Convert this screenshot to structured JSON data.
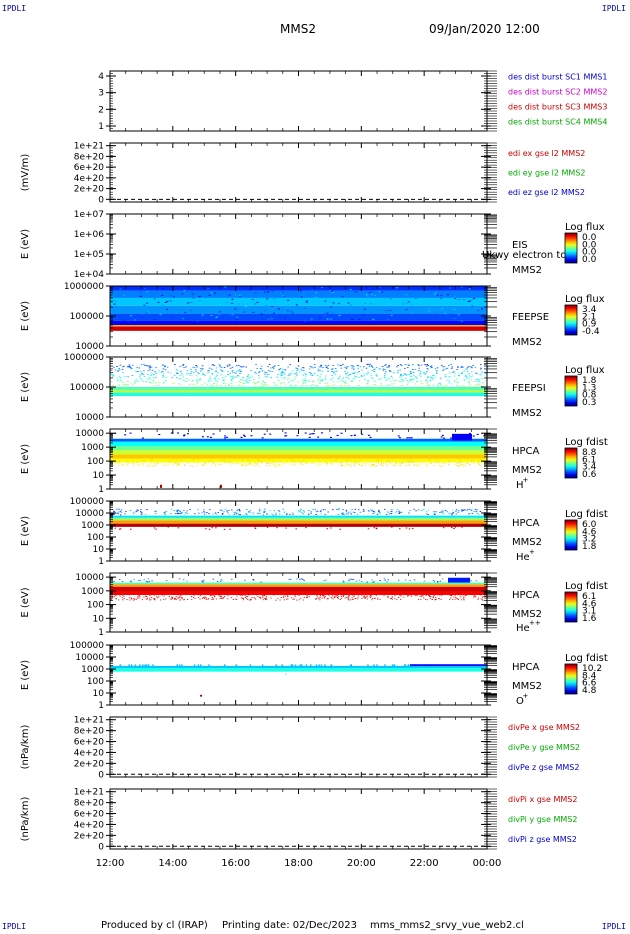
{
  "header": {
    "corner_mark": "IPDLI",
    "spacecraft": "MMS2",
    "datetime": "09/Jan/2020 12:00"
  },
  "footer": {
    "produced_by": "Produced by cl (IRAP)",
    "printing_date": "Printing date: 02/Dec/2023",
    "script": "mms_mms2_srvy_vue_web2.cl"
  },
  "chart_data": [
    {
      "type": "line",
      "panel": "des-dist-burst",
      "ylabel": "",
      "ytick_labels": [
        "1",
        "2",
        "3",
        "4"
      ],
      "ylim": [
        0.7,
        4.3
      ],
      "legend": [
        {
          "label": "des dist burst SC1 MMS1",
          "color": "#0000cc"
        },
        {
          "label": "des dist burst SC2 MMS2",
          "color": "#cc00cc"
        },
        {
          "label": "des dist burst SC3 MMS3",
          "color": "#cc0000"
        },
        {
          "label": "des dist burst SC4 MMS4",
          "color": "#00aa00"
        }
      ],
      "series": []
    },
    {
      "type": "line",
      "panel": "edi-e-field",
      "ylabel": "(mV/m)",
      "ytick_labels": [
        "0",
        "2e+20",
        "4e+20",
        "6e+20",
        "8e+20",
        "1e+21"
      ],
      "ylim": [
        -5e+19,
        1.05e+21
      ],
      "legend": [
        {
          "label": "edi ex gse l2 MMS2",
          "color": "#cc0000"
        },
        {
          "label": "edi ey gse l2 MMS2",
          "color": "#00aa00"
        },
        {
          "label": "edi ez gse l2 MMS2",
          "color": "#0000cc"
        }
      ],
      "zero_line": true,
      "series": []
    },
    {
      "type": "heatmap",
      "panel": "eis",
      "ylabel": "E (eV)",
      "ytick_labels": [
        "1e+04",
        "1e+05",
        "1e+06",
        "1e+07"
      ],
      "yscale": "log",
      "ylim": [
        10000.0,
        10000000.0
      ],
      "instrument": [
        "EIS",
        "MMS2"
      ],
      "overlay_text": "Ukwy electron to",
      "colorbar": {
        "title": "Log flux",
        "ticks": [
          "0.0",
          "0.0",
          "0.0",
          "0.0"
        ]
      },
      "fill": "empty"
    },
    {
      "type": "heatmap",
      "panel": "feeps-electron",
      "ylabel": "E (eV)",
      "ytick_labels": [
        "10000",
        "100000",
        "1000000"
      ],
      "yscale": "log",
      "ylim": [
        10000.0,
        1000000.0
      ],
      "instrument": [
        "FEEPSE",
        "MMS2"
      ],
      "colorbar": {
        "title": "Log flux",
        "ticks": [
          "3.4",
          "2.1",
          "0.9",
          "-0.4"
        ]
      },
      "fill": "feepse"
    },
    {
      "type": "heatmap",
      "panel": "feeps-ion",
      "ylabel": "E (eV)",
      "ytick_labels": [
        "10000",
        "100000",
        "1000000"
      ],
      "yscale": "log",
      "ylim": [
        10000.0,
        1000000.0
      ],
      "instrument": [
        "FEEPSI",
        "MMS2"
      ],
      "colorbar": {
        "title": "Log flux",
        "ticks": [
          "1.8",
          "1.3",
          "0.8",
          "0.3"
        ]
      },
      "fill": "feepsi"
    },
    {
      "type": "heatmap",
      "panel": "hpca-h",
      "ylabel": "E (eV)",
      "ytick_labels": [
        "1",
        "10",
        "100",
        "1000",
        "10000"
      ],
      "yscale": "log",
      "ylim": [
        1,
        20000
      ],
      "instrument": [
        "HPCA",
        "MMS2"
      ],
      "species": "H",
      "species_sup": "+",
      "colorbar": {
        "title": "Log fdist",
        "ticks": [
          "8.8",
          "6.1",
          "3.4",
          "0.6"
        ]
      },
      "fill": "hpca-h"
    },
    {
      "type": "heatmap",
      "panel": "hpca-he",
      "ylabel": "E (eV)",
      "ytick_labels": [
        "1",
        "10",
        "100",
        "1000",
        "10000",
        "100000"
      ],
      "yscale": "log",
      "ylim": [
        1,
        100000
      ],
      "instrument": [
        "HPCA",
        "MMS2"
      ],
      "species": "He",
      "species_sup": "+",
      "colorbar": {
        "title": "Log fdist",
        "ticks": [
          "6.0",
          "4.6",
          "3.2",
          "1.8"
        ]
      },
      "fill": "hpca-he"
    },
    {
      "type": "heatmap",
      "panel": "hpca-hepp",
      "ylabel": "E (eV)",
      "ytick_labels": [
        "1",
        "10",
        "100",
        "1000",
        "10000"
      ],
      "yscale": "log",
      "ylim": [
        1,
        20000
      ],
      "instrument": [
        "HPCA",
        "MMS2"
      ],
      "species": "He",
      "species_sup": "++",
      "colorbar": {
        "title": "Log fdist",
        "ticks": [
          "6.1",
          "4.6",
          "3.1",
          "1.6"
        ]
      },
      "fill": "hpca-hepp"
    },
    {
      "type": "heatmap",
      "panel": "hpca-o",
      "ylabel": "E (eV)",
      "ytick_labels": [
        "1",
        "10",
        "100",
        "1000",
        "10000",
        "100000"
      ],
      "yscale": "log",
      "ylim": [
        1,
        100000
      ],
      "instrument": [
        "HPCA",
        "MMS2"
      ],
      "species": "O",
      "species_sup": "+",
      "colorbar": {
        "title": "Log fdist",
        "ticks": [
          "10.2",
          "8.4",
          "6.6",
          "4.8"
        ]
      },
      "fill": "hpca-o"
    },
    {
      "type": "line",
      "panel": "divpe",
      "ylabel": "(nPa/km)",
      "ytick_labels": [
        "0",
        "2e+20",
        "4e+20",
        "6e+20",
        "8e+20",
        "1e+21"
      ],
      "ylim": [
        -5e+19,
        1.05e+21
      ],
      "legend": [
        {
          "label": "divPe x gse MMS2",
          "color": "#cc0000"
        },
        {
          "label": "divPe y gse MMS2",
          "color": "#00aa00"
        },
        {
          "label": "divPe z gse MMS2",
          "color": "#0000cc"
        }
      ],
      "zero_line": true,
      "series": []
    },
    {
      "type": "line",
      "panel": "divpi",
      "ylabel": "(nPa/km)",
      "ytick_labels": [
        "0",
        "2e+20",
        "4e+20",
        "6e+20",
        "8e+20",
        "1e+21"
      ],
      "ylim": [
        -5e+19,
        1.05e+21
      ],
      "legend": [
        {
          "label": "divPi x gse MMS2",
          "color": "#cc0000"
        },
        {
          "label": "divPi y gse MMS2",
          "color": "#00aa00"
        },
        {
          "label": "divPi z gse MMS2",
          "color": "#0000cc"
        }
      ],
      "zero_line": true,
      "series": []
    }
  ],
  "x_axis": {
    "tick_labels": [
      "12:00",
      "14:00",
      "16:00",
      "18:00",
      "20:00",
      "22:00",
      "00:00"
    ]
  }
}
